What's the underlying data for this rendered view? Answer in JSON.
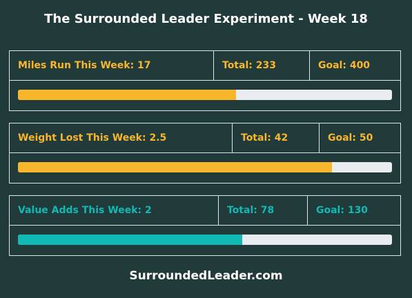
{
  "title": "The Surrounded Leader Experiment - Week 18",
  "footer": "SurroundedLeader.com",
  "colors": {
    "background": "#213a3a",
    "orange": "#f8b62c",
    "teal": "#11b8b4",
    "track": "#e9edf0"
  },
  "metrics": [
    {
      "week_label": "Miles Run This Week: 17",
      "total_label": "Total: 233",
      "goal_label": "Goal: 400",
      "progress": 0.5825
    },
    {
      "week_label": "Weight Lost This Week: 2.5",
      "total_label": "Total: 42",
      "goal_label": "Goal: 50",
      "progress": 0.84
    },
    {
      "week_label": "Value Adds This Week: 2",
      "total_label": "Total: 78",
      "goal_label": "Goal: 130",
      "progress": 0.6
    }
  ]
}
